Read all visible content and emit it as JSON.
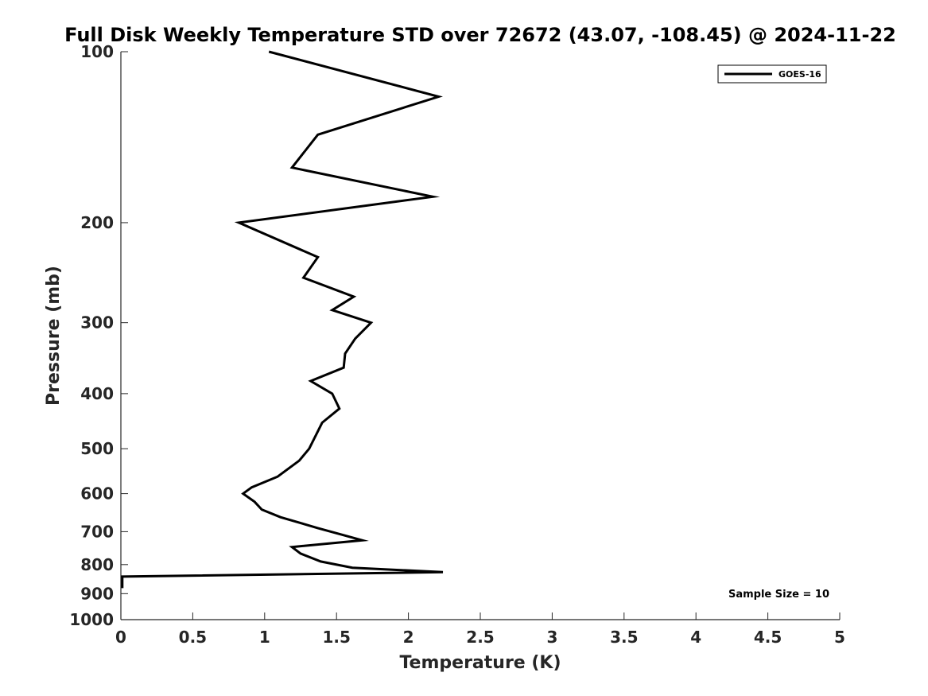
{
  "chart_data": {
    "type": "line",
    "title": "Full Disk Weekly Temperature STD over 72672 (43.07, -108.45) @ 2024-11-22",
    "xlabel": "Temperature (K)",
    "ylabel": "Pressure (mb)",
    "xlim": [
      0,
      5
    ],
    "ylim": [
      100,
      1000
    ],
    "y_scale": "log",
    "y_reversed": true,
    "grid": false,
    "legend_position": "top-right",
    "x_ticks": [
      0,
      0.5,
      1,
      1.5,
      2,
      2.5,
      3,
      3.5,
      4,
      4.5,
      5
    ],
    "x_tick_labels": [
      "0",
      "0.5",
      "1",
      "1.5",
      "2",
      "2.5",
      "3",
      "3.5",
      "4",
      "4.5",
      "5"
    ],
    "y_ticks": [
      100,
      200,
      300,
      400,
      500,
      600,
      700,
      800,
      900,
      1000
    ],
    "y_tick_labels": [
      "100",
      "200",
      "300",
      "400",
      "500",
      "600",
      "700",
      "800",
      "900",
      "1000"
    ],
    "series": [
      {
        "name": "GOES-16",
        "color": "#000000",
        "points": [
          {
            "x": 1.03,
            "y": 100
          },
          {
            "x": 2.21,
            "y": 120
          },
          {
            "x": 1.37,
            "y": 140
          },
          {
            "x": 1.19,
            "y": 160
          },
          {
            "x": 2.17,
            "y": 180
          },
          {
            "x": 0.82,
            "y": 200
          },
          {
            "x": 1.37,
            "y": 230
          },
          {
            "x": 1.27,
            "y": 250
          },
          {
            "x": 1.62,
            "y": 270
          },
          {
            "x": 1.47,
            "y": 285
          },
          {
            "x": 1.74,
            "y": 300
          },
          {
            "x": 1.63,
            "y": 320
          },
          {
            "x": 1.56,
            "y": 340
          },
          {
            "x": 1.55,
            "y": 360
          },
          {
            "x": 1.32,
            "y": 380
          },
          {
            "x": 1.47,
            "y": 400
          },
          {
            "x": 1.52,
            "y": 425
          },
          {
            "x": 1.4,
            "y": 450
          },
          {
            "x": 1.31,
            "y": 500
          },
          {
            "x": 1.24,
            "y": 525
          },
          {
            "x": 1.09,
            "y": 560
          },
          {
            "x": 0.91,
            "y": 585
          },
          {
            "x": 0.85,
            "y": 600
          },
          {
            "x": 0.93,
            "y": 620
          },
          {
            "x": 0.98,
            "y": 640
          },
          {
            "x": 1.11,
            "y": 660
          },
          {
            "x": 1.37,
            "y": 690
          },
          {
            "x": 1.55,
            "y": 710
          },
          {
            "x": 1.68,
            "y": 725
          },
          {
            "x": 1.19,
            "y": 745
          },
          {
            "x": 1.25,
            "y": 765
          },
          {
            "x": 1.39,
            "y": 790
          },
          {
            "x": 1.61,
            "y": 810
          },
          {
            "x": 2.24,
            "y": 825
          },
          {
            "x": 0.01,
            "y": 840
          },
          {
            "x": 0.01,
            "y": 880
          }
        ]
      }
    ],
    "annotation": "Sample Size = 10"
  }
}
